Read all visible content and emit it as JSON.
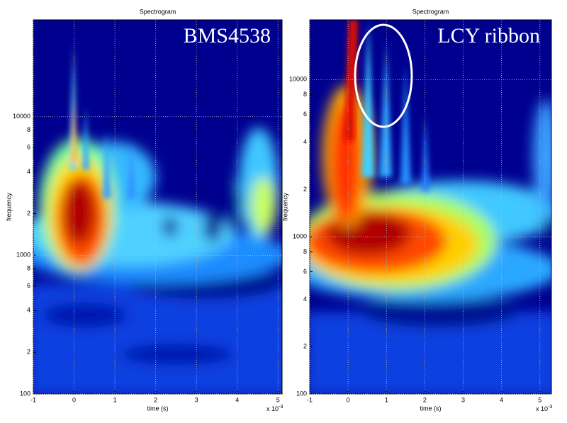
{
  "chart_data": [
    {
      "type": "spectrogram",
      "title": "Spectrogram",
      "x_label": "time (s)",
      "y_label": "frequency",
      "x_multiplier": {
        "base": "x 10",
        "exponent": "-3"
      },
      "annotation": "BMS4538",
      "xlim": [
        -1,
        5.1
      ],
      "xticks": [
        -1,
        0,
        1,
        2,
        3,
        4,
        5
      ],
      "ylim": [
        100,
        50000
      ],
      "log_y": true,
      "grid": true,
      "yticks": [
        100,
        {
          "value": 200,
          "label": "2"
        },
        {
          "value": 400,
          "label": "4"
        },
        {
          "value": 600,
          "label": "6"
        },
        {
          "value": 800,
          "label": "8"
        },
        1000,
        {
          "value": 2000,
          "label": "2"
        },
        {
          "value": 4000,
          "label": "4"
        },
        {
          "value": 6000,
          "label": "6"
        },
        {
          "value": 8000,
          "label": "8"
        },
        10000
      ]
    },
    {
      "type": "spectrogram",
      "title": "Spectrogram",
      "x_label": "time (s)",
      "y_label": "frequency",
      "x_multiplier": {
        "base": "x 10",
        "exponent": "-3"
      },
      "annotation": "LCY ribbon",
      "xlim": [
        -1,
        5.3
      ],
      "xticks": [
        -1,
        0,
        1,
        2,
        3,
        4,
        5
      ],
      "ylim": [
        100,
        24000
      ],
      "log_y": true,
      "grid": true,
      "yticks": [
        100,
        {
          "value": 200,
          "label": "2"
        },
        {
          "value": 400,
          "label": "4"
        },
        {
          "value": 600,
          "label": "6"
        },
        {
          "value": 800,
          "label": "8"
        },
        1000,
        {
          "value": 2000,
          "label": "2"
        },
        {
          "value": 4000,
          "label": "4"
        },
        {
          "value": 6000,
          "label": "6"
        },
        {
          "value": 8000,
          "label": "8"
        },
        10000
      ]
    }
  ]
}
